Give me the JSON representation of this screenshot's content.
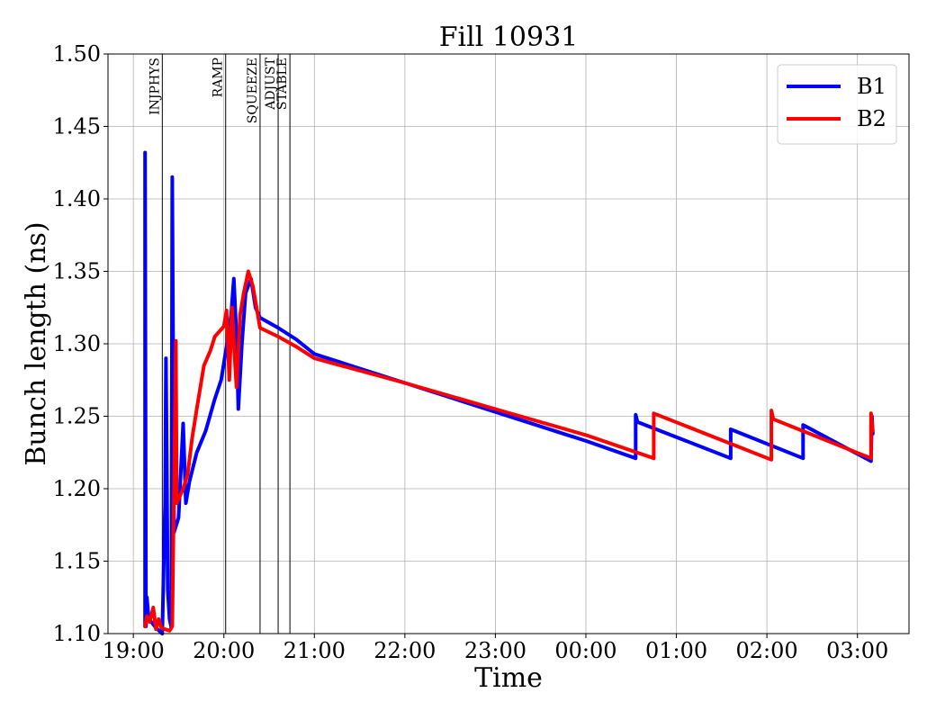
{
  "chart_data": {
    "type": "line",
    "title": "Fill 10931",
    "xlabel": "Time",
    "ylabel": "Bunch length (ns)",
    "x_unit": "hours since 19:00 (display as HH:MM)",
    "xlim": [
      -0.28,
      8.57
    ],
    "ylim": [
      1.1,
      1.5
    ],
    "x_ticks": [
      0,
      1,
      2,
      3,
      4,
      5,
      6,
      7,
      8
    ],
    "x_tick_labels": [
      "19:00",
      "20:00",
      "21:00",
      "22:00",
      "23:00",
      "00:00",
      "01:00",
      "02:00",
      "03:00"
    ],
    "y_ticks": [
      1.1,
      1.15,
      1.2,
      1.25,
      1.3,
      1.35,
      1.4,
      1.45,
      1.5
    ],
    "y_tick_labels": [
      "1.10",
      "1.15",
      "1.20",
      "1.25",
      "1.30",
      "1.35",
      "1.40",
      "1.45",
      "1.50"
    ],
    "grid": true,
    "legend_position": "top-right",
    "mode_markers": [
      {
        "label": "INJPHYS",
        "x": 0.32
      },
      {
        "label": "RAMP",
        "x": 1.02
      },
      {
        "label": "SQUEEZE",
        "x": 1.4
      },
      {
        "label": "ADJUST",
        "x": 1.6
      },
      {
        "label": "STABLE",
        "x": 1.73
      }
    ],
    "series": [
      {
        "name": "B1",
        "color": "#0000ff",
        "points": [
          [
            0.13,
            1.105
          ],
          [
            0.13,
            1.432
          ],
          [
            0.14,
            1.105
          ],
          [
            0.15,
            1.125
          ],
          [
            0.17,
            1.11
          ],
          [
            0.2,
            1.108
          ],
          [
            0.25,
            1.104
          ],
          [
            0.32,
            1.1
          ],
          [
            0.35,
            1.19
          ],
          [
            0.36,
            1.29
          ],
          [
            0.38,
            1.13
          ],
          [
            0.4,
            1.11
          ],
          [
            0.42,
            1.104
          ],
          [
            0.43,
            1.415
          ],
          [
            0.45,
            1.17
          ],
          [
            0.5,
            1.18
          ],
          [
            0.55,
            1.245
          ],
          [
            0.58,
            1.19
          ],
          [
            0.62,
            1.205
          ],
          [
            0.7,
            1.225
          ],
          [
            0.8,
            1.24
          ],
          [
            0.9,
            1.262
          ],
          [
            0.97,
            1.275
          ],
          [
            1.03,
            1.298
          ],
          [
            1.08,
            1.32
          ],
          [
            1.11,
            1.345
          ],
          [
            1.14,
            1.305
          ],
          [
            1.16,
            1.255
          ],
          [
            1.2,
            1.3
          ],
          [
            1.24,
            1.335
          ],
          [
            1.3,
            1.345
          ],
          [
            1.35,
            1.325
          ],
          [
            1.4,
            1.318
          ],
          [
            1.6,
            1.311
          ],
          [
            1.8,
            1.303
          ],
          [
            2.0,
            1.293
          ],
          [
            3.0,
            1.273
          ],
          [
            4.0,
            1.253
          ],
          [
            5.0,
            1.233
          ],
          [
            5.55,
            1.221
          ],
          [
            5.55,
            1.251
          ],
          [
            5.57,
            1.246
          ],
          [
            6.6,
            1.221
          ],
          [
            6.6,
            1.241
          ],
          [
            7.4,
            1.221
          ],
          [
            7.4,
            1.244
          ],
          [
            8.15,
            1.219
          ],
          [
            8.16,
            1.25
          ],
          [
            8.17,
            1.238
          ]
        ]
      },
      {
        "name": "B2",
        "color": "#ff0000",
        "points": [
          [
            0.13,
            1.105
          ],
          [
            0.15,
            1.112
          ],
          [
            0.18,
            1.108
          ],
          [
            0.22,
            1.118
          ],
          [
            0.25,
            1.103
          ],
          [
            0.28,
            1.11
          ],
          [
            0.31,
            1.104
          ],
          [
            0.35,
            1.103
          ],
          [
            0.4,
            1.102
          ],
          [
            0.43,
            1.105
          ],
          [
            0.47,
            1.302
          ],
          [
            0.48,
            1.19
          ],
          [
            0.55,
            1.2
          ],
          [
            0.6,
            1.21
          ],
          [
            0.65,
            1.235
          ],
          [
            0.7,
            1.255
          ],
          [
            0.78,
            1.285
          ],
          [
            0.85,
            1.295
          ],
          [
            0.9,
            1.305
          ],
          [
            1.0,
            1.312
          ],
          [
            1.03,
            1.323
          ],
          [
            1.06,
            1.275
          ],
          [
            1.09,
            1.325
          ],
          [
            1.12,
            1.29
          ],
          [
            1.14,
            1.27
          ],
          [
            1.18,
            1.32
          ],
          [
            1.22,
            1.335
          ],
          [
            1.27,
            1.35
          ],
          [
            1.32,
            1.34
          ],
          [
            1.37,
            1.322
          ],
          [
            1.4,
            1.311
          ],
          [
            1.6,
            1.305
          ],
          [
            1.8,
            1.298
          ],
          [
            2.0,
            1.29
          ],
          [
            3.0,
            1.273
          ],
          [
            4.0,
            1.255
          ],
          [
            5.0,
            1.237
          ],
          [
            5.75,
            1.221
          ],
          [
            5.75,
            1.252
          ],
          [
            7.05,
            1.22
          ],
          [
            7.05,
            1.254
          ],
          [
            7.07,
            1.248
          ],
          [
            8.15,
            1.221
          ],
          [
            8.15,
            1.252
          ],
          [
            8.17,
            1.24
          ]
        ]
      }
    ]
  }
}
